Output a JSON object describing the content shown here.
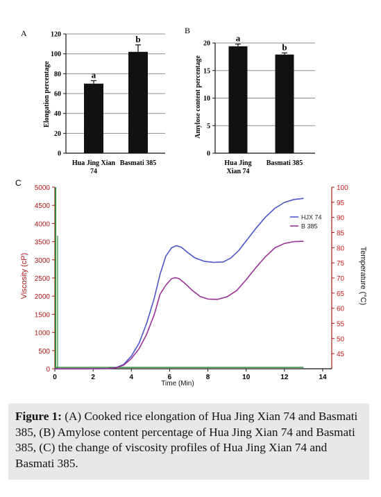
{
  "chart_data": [
    {
      "id": "A",
      "type": "bar",
      "panel_label": "A",
      "categories": [
        "Hua Jing Xian 74",
        "Basmati 385"
      ],
      "category_lines": [
        [
          "Hua Jing Xian",
          "74"
        ],
        [
          "Basmati 385"
        ]
      ],
      "values": [
        70,
        102
      ],
      "errors": [
        3,
        7
      ],
      "significance": [
        "a",
        "b"
      ],
      "ylabel": "Elongation percentage",
      "ylim": [
        0,
        120
      ],
      "yticks": [
        0,
        20,
        40,
        60,
        80,
        100,
        120
      ],
      "bar_color": "#111111"
    },
    {
      "id": "B",
      "type": "bar",
      "panel_label": "B",
      "categories": [
        "Hua Jing Xian 74",
        "Basmati 385"
      ],
      "category_lines": [
        [
          "Hua Jing",
          "Xian 74"
        ],
        [
          "Basmati 385"
        ]
      ],
      "values": [
        19.4,
        17.9
      ],
      "errors": [
        0.4,
        0.3
      ],
      "significance": [
        "a",
        "b"
      ],
      "ylabel": "Amylose content percentage",
      "ylim": [
        0,
        20
      ],
      "yticks": [
        0,
        5,
        10,
        15,
        20
      ],
      "bar_color": "#111111"
    },
    {
      "id": "C",
      "type": "line",
      "panel_label": "C",
      "xlabel": "Time (Min)",
      "ylabel": "Viscosity (cP)",
      "y2label": "Temperature (°C)",
      "xlim": [
        0,
        14
      ],
      "xticks": [
        0,
        2,
        4,
        6,
        8,
        10,
        12,
        14
      ],
      "ylim": [
        0,
        5000
      ],
      "yticks": [
        0,
        500,
        1000,
        1500,
        2000,
        2500,
        3000,
        3500,
        4000,
        4500,
        5000
      ],
      "y2lim": [
        40,
        100
      ],
      "y2ticks": [
        45,
        50,
        55,
        60,
        65,
        70,
        75,
        80,
        85,
        90,
        95,
        100
      ],
      "legend_position": "top-right",
      "series": [
        {
          "name": "HJX 74",
          "color": "#4a54c8",
          "x": [
            0,
            1,
            2,
            2.8,
            3.2,
            3.6,
            4.0,
            4.4,
            4.8,
            5.2,
            5.5,
            5.8,
            6.1,
            6.35,
            6.6,
            6.9,
            7.3,
            7.8,
            8.3,
            8.8,
            9.2,
            9.6,
            10.0,
            10.5,
            11.0,
            11.5,
            12.0,
            12.5,
            13.0
          ],
          "y": [
            0,
            0,
            0,
            5,
            30,
            120,
            350,
            700,
            1250,
            1950,
            2600,
            3100,
            3330,
            3390,
            3350,
            3220,
            3060,
            2960,
            2930,
            2940,
            3050,
            3250,
            3520,
            3860,
            4170,
            4420,
            4580,
            4660,
            4690
          ]
        },
        {
          "name": "B 385",
          "color": "#9b3098",
          "x": [
            0,
            1,
            2,
            2.8,
            3.2,
            3.6,
            4.0,
            4.4,
            4.8,
            5.2,
            5.5,
            5.8,
            6.1,
            6.3,
            6.5,
            6.8,
            7.2,
            7.6,
            8.0,
            8.5,
            9.0,
            9.5,
            10.0,
            10.5,
            11.0,
            11.5,
            12.0,
            12.5,
            13.0
          ],
          "y": [
            0,
            0,
            0,
            5,
            25,
            100,
            280,
            550,
            950,
            1500,
            2050,
            2300,
            2480,
            2510,
            2480,
            2350,
            2150,
            1990,
            1920,
            1910,
            1980,
            2150,
            2450,
            2780,
            3080,
            3330,
            3450,
            3500,
            3510
          ]
        }
      ]
    }
  ],
  "caption": {
    "label": "Figure 1:",
    "text": " (A) Cooked rice elongation of Hua Jing Xian 74 and Basmati 385, (B) Amylose content percentage of Hua Jing Xian 74 and Basmati 385, (C) the change of viscosity profiles of Hua Jing Xian 74 and Basmati 385."
  }
}
